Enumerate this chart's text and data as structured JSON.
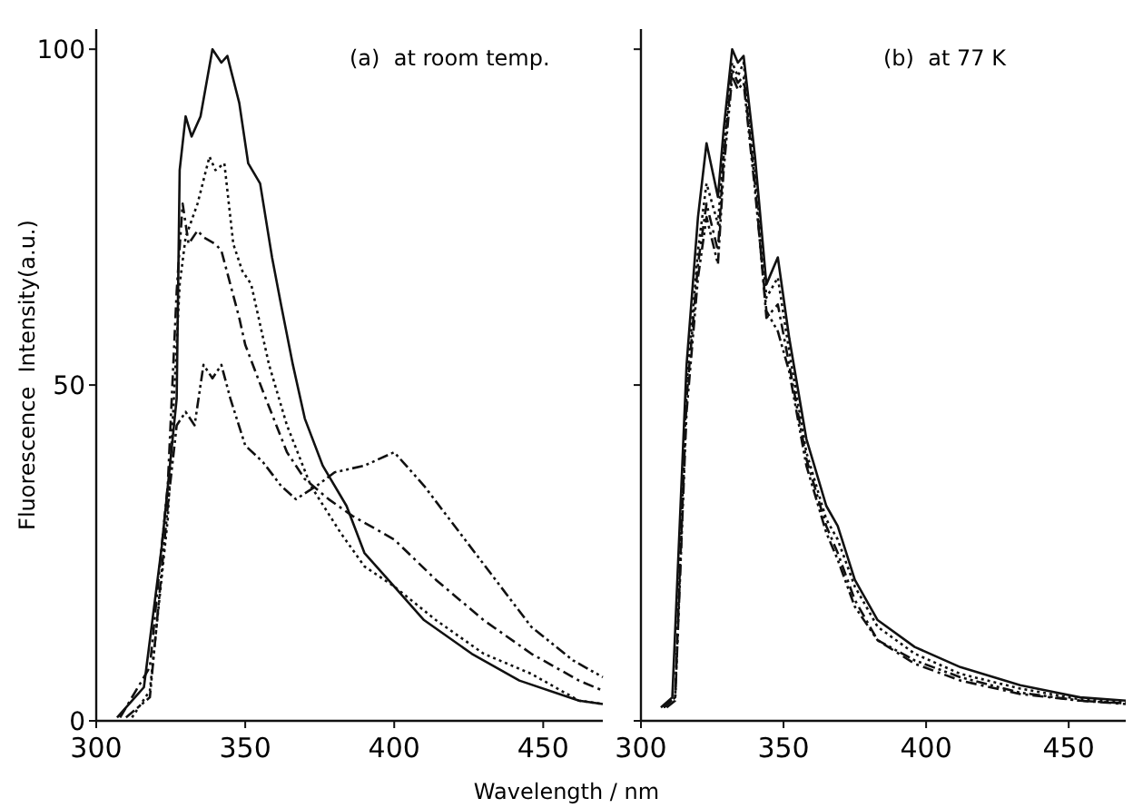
{
  "chart_data": [
    {
      "type": "line",
      "title": "(a)  at room temp.",
      "xlabel": "Wavelength / nm",
      "ylabel": "Fluorescence  Intensity(a.u.)",
      "xlim": [
        300,
        470
      ],
      "ylim": [
        0,
        103
      ],
      "xticks": [
        300,
        350,
        400,
        450
      ],
      "yticks": [
        0,
        50,
        100
      ],
      "grid": false,
      "series": [
        {
          "color": "#111111",
          "line_style": "solid",
          "x": [
            307,
            316,
            322,
            327,
            328,
            330,
            332,
            335,
            339,
            342,
            344,
            348,
            351,
            355,
            359,
            362,
            366,
            370,
            376,
            384,
            390,
            398,
            410,
            426,
            442,
            462,
            470
          ],
          "values": [
            0.5,
            5,
            26,
            48,
            82,
            90,
            87,
            90,
            100,
            98,
            99,
            92,
            83,
            80,
            69,
            62,
            53,
            45,
            38,
            32,
            25,
            21,
            15,
            10,
            6,
            3,
            2.5
          ]
        },
        {
          "color": "#111111",
          "line_style": "dotted",
          "x": [
            312,
            318,
            324,
            328,
            330,
            334,
            338,
            340,
            343,
            346,
            349,
            352,
            358,
            364,
            372,
            382,
            390,
            400,
            414,
            430,
            446,
            462,
            470
          ],
          "values": [
            0.5,
            4.5,
            30,
            65,
            72,
            77,
            84,
            82,
            83,
            71,
            67,
            65,
            53,
            44,
            35,
            28,
            23,
            20,
            15,
            10,
            7,
            3,
            2.5
          ]
        },
        {
          "color": "#111111",
          "line_style": "dashdot",
          "x": [
            308,
            318,
            324,
            327,
            329,
            331,
            334,
            336,
            340,
            342,
            348,
            350,
            356,
            364,
            370,
            378,
            386,
            400,
            414,
            430,
            446,
            462,
            470
          ],
          "values": [
            0.5,
            8,
            35,
            64,
            77,
            71,
            73,
            72,
            71,
            70,
            60,
            56,
            49,
            40,
            36,
            33,
            30.5,
            27,
            21,
            15,
            10,
            6,
            4.5
          ]
        },
        {
          "color": "#111111",
          "line_style": "dashdotdot",
          "x": [
            310,
            318,
            324,
            327,
            330,
            333,
            336,
            339,
            342,
            345,
            350,
            356,
            362,
            367,
            374,
            380,
            390,
            400,
            410,
            422,
            434,
            446,
            460,
            470
          ],
          "values": [
            0.5,
            3.5,
            32,
            44,
            46,
            44,
            53,
            51,
            53,
            48,
            41,
            38.5,
            35,
            33,
            35,
            37,
            38,
            40,
            35,
            28,
            21,
            14,
            9,
            6.5
          ]
        }
      ]
    },
    {
      "type": "line",
      "title": "(b)  at 77 K",
      "xlim": [
        300,
        470
      ],
      "ylim": [
        0,
        103
      ],
      "xticks": [
        300,
        350,
        400,
        450
      ],
      "yticks": [
        0,
        50,
        100
      ],
      "tick_labels": "x",
      "grid": false,
      "series": [
        {
          "color": "#111111",
          "line_style": "solid",
          "x": [
            307,
            311,
            316,
            320,
            323,
            327,
            329,
            332,
            334,
            336,
            340,
            344,
            348,
            352,
            358,
            365,
            369,
            375,
            383,
            396,
            412,
            433,
            454,
            470
          ],
          "values": [
            2,
            3.5,
            53,
            75,
            86,
            78,
            88,
            100,
            98,
            99,
            84,
            65,
            69,
            57,
            42,
            32,
            29,
            21,
            15,
            11,
            8,
            5.3,
            3.5,
            3
          ]
        },
        {
          "color": "#111111",
          "line_style": "dotted",
          "x": [
            308,
            312,
            316,
            320,
            323,
            327,
            329,
            332,
            334,
            336,
            340,
            344,
            348,
            352,
            358,
            365,
            369,
            375,
            383,
            396,
            412,
            433,
            454,
            470
          ],
          "values": [
            2,
            3.5,
            50,
            70,
            80,
            74,
            85,
            98,
            96,
            98,
            82,
            63,
            66,
            55,
            40,
            30,
            27,
            20,
            14,
            10,
            7,
            4.8,
            3.2,
            2.8
          ]
        },
        {
          "color": "#111111",
          "line_style": "dashdot",
          "x": [
            308,
            312,
            316,
            320,
            323,
            327,
            329,
            332,
            334,
            336,
            340,
            344,
            348,
            352,
            358,
            365,
            369,
            375,
            383,
            396,
            412,
            433,
            454,
            470
          ],
          "values": [
            2,
            3.5,
            48,
            68,
            77,
            70,
            84,
            97,
            95,
            96,
            80,
            60,
            62,
            53,
            39,
            29,
            25,
            18,
            12,
            8.5,
            6,
            4,
            3,
            2.5
          ]
        },
        {
          "color": "#111111",
          "line_style": "dashdotdot",
          "x": [
            309,
            312,
            316,
            320,
            323,
            327,
            329,
            332,
            334,
            336,
            340,
            344,
            348,
            352,
            358,
            365,
            369,
            375,
            383,
            396,
            412,
            433,
            454,
            470
          ],
          "values": [
            2,
            3,
            46,
            66,
            75,
            68,
            82,
            96,
            94,
            95,
            79,
            61,
            58,
            52,
            38,
            28,
            24,
            17,
            12,
            9,
            6.5,
            4.2,
            3,
            2.6
          ]
        }
      ]
    }
  ]
}
